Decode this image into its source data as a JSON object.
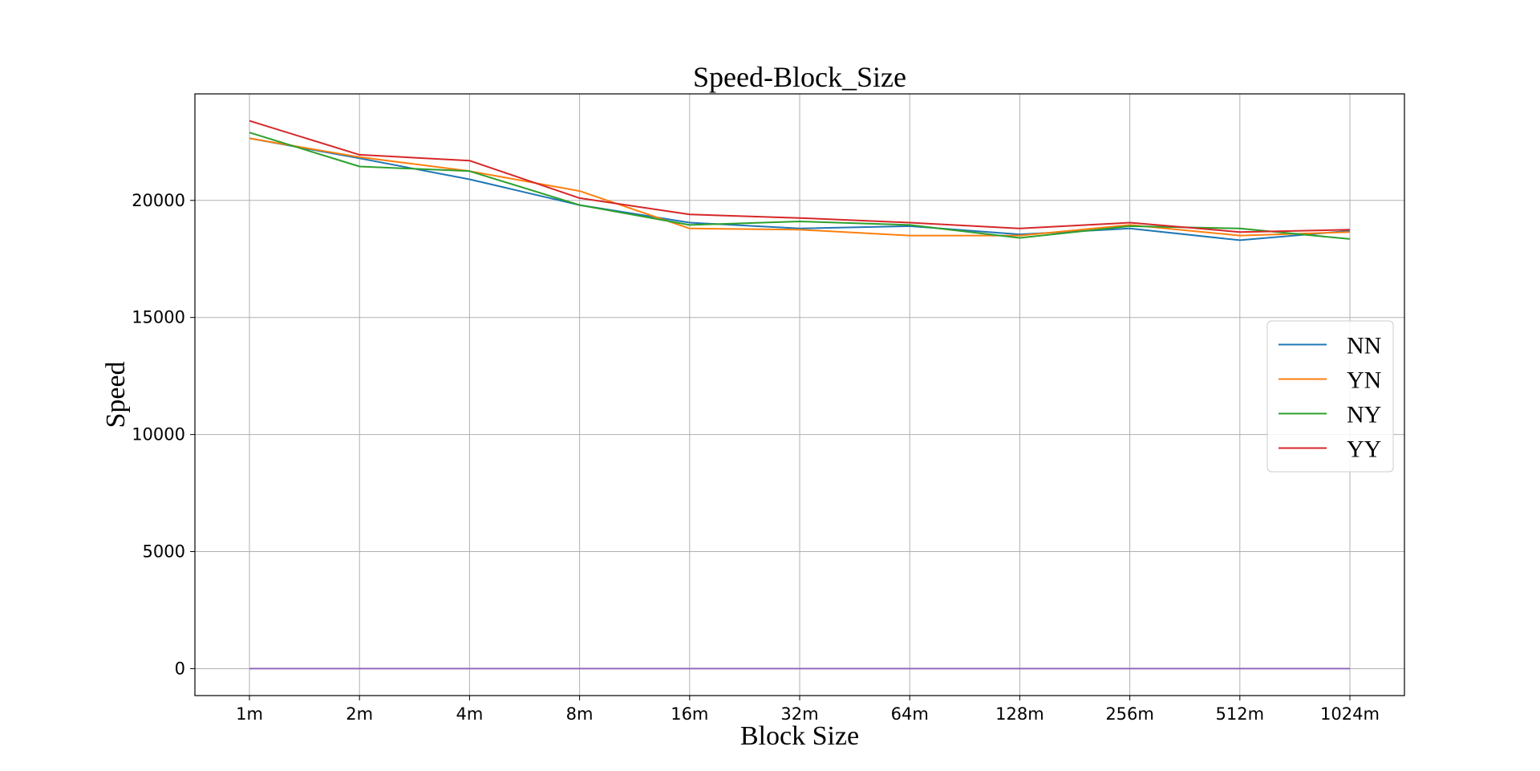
{
  "chart_data": {
    "type": "line",
    "title": "Speed-Block_Size",
    "xlabel": "Block Size",
    "ylabel": "Speed",
    "categories": [
      "1m",
      "2m",
      "4m",
      "8m",
      "16m",
      "32m",
      "64m",
      "128m",
      "256m",
      "512m",
      "1024m"
    ],
    "ylim": [
      -1150,
      24550
    ],
    "yticks": [
      0,
      5000,
      10000,
      15000,
      20000
    ],
    "grid": true,
    "legend_position": "center-right",
    "series": [
      {
        "name": "NN",
        "color": "#1f77b4",
        "values": [
          22650,
          21800,
          20900,
          19800,
          19050,
          18800,
          18900,
          18550,
          18800,
          18300,
          18700
        ]
      },
      {
        "name": "YN",
        "color": "#ff7f0e",
        "values": [
          22650,
          21850,
          21250,
          20400,
          18800,
          18750,
          18500,
          18500,
          18950,
          18500,
          18650
        ]
      },
      {
        "name": "NY",
        "color": "#2ca02c",
        "values": [
          22900,
          21450,
          21250,
          19800,
          18950,
          19100,
          18950,
          18400,
          18900,
          18800,
          18350
        ]
      },
      {
        "name": "YY",
        "color": "#d62728",
        "values": [
          23400,
          21950,
          21700,
          20100,
          19400,
          19250,
          19050,
          18800,
          19050,
          18650,
          18750
        ]
      },
      {
        "name": "",
        "color": "#9467bd",
        "values": [
          0,
          0,
          0,
          0,
          0,
          0,
          0,
          0,
          0,
          0,
          0
        ]
      }
    ]
  }
}
